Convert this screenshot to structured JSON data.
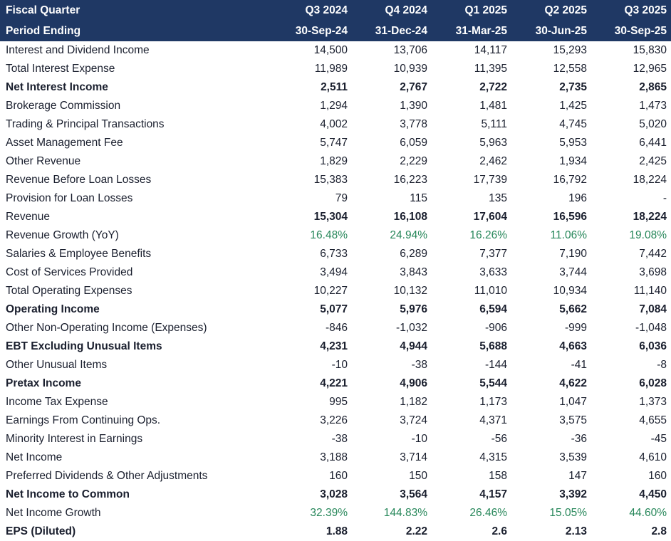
{
  "colors": {
    "header_bg": "#1F3864",
    "header_text": "#FFFFFF",
    "body_text": "#1A1F2E",
    "growth_green": "#27875A"
  },
  "chart_data": {
    "type": "table",
    "header": {
      "row1_label": "Fiscal Quarter",
      "row2_label": "Period Ending",
      "quarters": [
        "Q3 2024",
        "Q4 2024",
        "Q1 2025",
        "Q2 2025",
        "Q3 2025"
      ],
      "period_endings": [
        "30-Sep-24",
        "31-Dec-24",
        "31-Mar-25",
        "30-Jun-25",
        "30-Sep-25"
      ]
    },
    "rows": [
      {
        "label": "Interest and Dividend Income",
        "values": [
          "14,500",
          "13,706",
          "14,117",
          "15,293",
          "15,830"
        ],
        "style": "normal"
      },
      {
        "label": "Total Interest Expense",
        "values": [
          "11,989",
          "10,939",
          "11,395",
          "12,558",
          "12,965"
        ],
        "style": "normal"
      },
      {
        "label": "Net Interest Income",
        "values": [
          "2,511",
          "2,767",
          "2,722",
          "2,735",
          "2,865"
        ],
        "style": "bold"
      },
      {
        "label": "Brokerage Commission",
        "values": [
          "1,294",
          "1,390",
          "1,481",
          "1,425",
          "1,473"
        ],
        "style": "normal"
      },
      {
        "label": "Trading & Principal Transactions",
        "values": [
          "4,002",
          "3,778",
          "5,111",
          "4,745",
          "5,020"
        ],
        "style": "normal"
      },
      {
        "label": "Asset Management Fee",
        "values": [
          "5,747",
          "6,059",
          "5,963",
          "5,953",
          "6,441"
        ],
        "style": "normal"
      },
      {
        "label": "Other Revenue",
        "values": [
          "1,829",
          "2,229",
          "2,462",
          "1,934",
          "2,425"
        ],
        "style": "normal"
      },
      {
        "label": "Revenue Before Loan Losses",
        "values": [
          "15,383",
          "16,223",
          "17,739",
          "16,792",
          "18,224"
        ],
        "style": "normal"
      },
      {
        "label": "Provision for Loan Losses",
        "values": [
          "79",
          "115",
          "135",
          "196",
          "-"
        ],
        "style": "normal"
      },
      {
        "label": "Revenue",
        "values": [
          "15,304",
          "16,108",
          "17,604",
          "16,596",
          "18,224"
        ],
        "style": "bold-values"
      },
      {
        "label": "Revenue Growth (YoY)",
        "values": [
          "16.48%",
          "24.94%",
          "16.26%",
          "11.06%",
          "19.08%"
        ],
        "style": "growth"
      },
      {
        "label": "Salaries & Employee Benefits",
        "values": [
          "6,733",
          "6,289",
          "7,377",
          "7,190",
          "7,442"
        ],
        "style": "normal"
      },
      {
        "label": "Cost of Services Provided",
        "values": [
          "3,494",
          "3,843",
          "3,633",
          "3,744",
          "3,698"
        ],
        "style": "normal"
      },
      {
        "label": "Total Operating Expenses",
        "values": [
          "10,227",
          "10,132",
          "11,010",
          "10,934",
          "11,140"
        ],
        "style": "normal"
      },
      {
        "label": "Operating Income",
        "values": [
          "5,077",
          "5,976",
          "6,594",
          "5,662",
          "7,084"
        ],
        "style": "bold"
      },
      {
        "label": "Other Non-Operating Income (Expenses)",
        "values": [
          "-846",
          "-1,032",
          "-906",
          "-999",
          "-1,048"
        ],
        "style": "normal"
      },
      {
        "label": "EBT Excluding Unusual Items",
        "values": [
          "4,231",
          "4,944",
          "5,688",
          "4,663",
          "6,036"
        ],
        "style": "bold"
      },
      {
        "label": "Other Unusual Items",
        "values": [
          "-10",
          "-38",
          "-144",
          "-41",
          "-8"
        ],
        "style": "normal"
      },
      {
        "label": "Pretax Income",
        "values": [
          "4,221",
          "4,906",
          "5,544",
          "4,622",
          "6,028"
        ],
        "style": "bold"
      },
      {
        "label": "Income Tax Expense",
        "values": [
          "995",
          "1,182",
          "1,173",
          "1,047",
          "1,373"
        ],
        "style": "normal"
      },
      {
        "label": "Earnings From Continuing Ops.",
        "values": [
          "3,226",
          "3,724",
          "4,371",
          "3,575",
          "4,655"
        ],
        "style": "normal"
      },
      {
        "label": "Minority Interest in Earnings",
        "values": [
          "-38",
          "-10",
          "-56",
          "-36",
          "-45"
        ],
        "style": "normal"
      },
      {
        "label": "Net Income",
        "values": [
          "3,188",
          "3,714",
          "4,315",
          "3,539",
          "4,610"
        ],
        "style": "normal"
      },
      {
        "label": "Preferred Dividends & Other Adjustments",
        "values": [
          "160",
          "150",
          "158",
          "147",
          "160"
        ],
        "style": "normal"
      },
      {
        "label": "Net Income to Common",
        "values": [
          "3,028",
          "3,564",
          "4,157",
          "3,392",
          "4,450"
        ],
        "style": "bold"
      },
      {
        "label": "Net Income Growth",
        "values": [
          "32.39%",
          "144.83%",
          "26.46%",
          "15.05%",
          "44.60%"
        ],
        "style": "growth"
      },
      {
        "label": "EPS (Diluted)",
        "values": [
          "1.88",
          "2.22",
          "2.6",
          "2.13",
          "2.8"
        ],
        "style": "bold"
      }
    ]
  }
}
